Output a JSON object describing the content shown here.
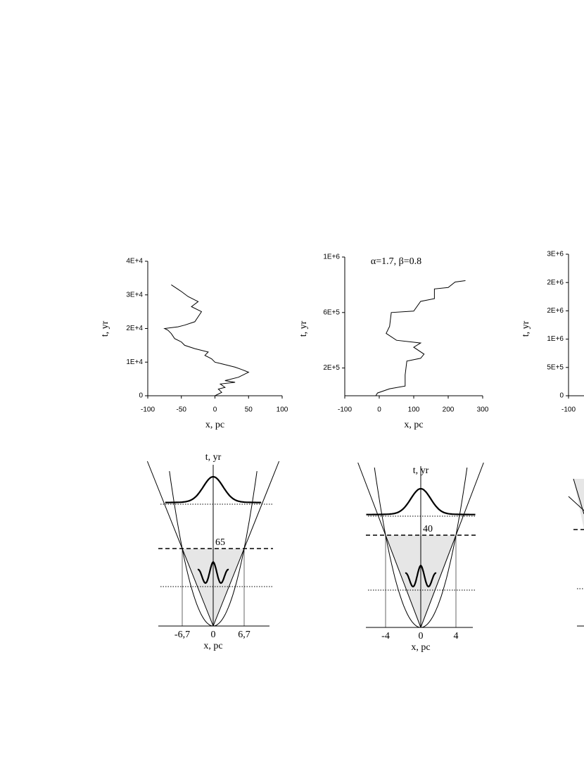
{
  "chart_data": [
    {
      "type": "line",
      "ylabel": "t, yr",
      "xlabel": "x, pc",
      "xlim": [
        -100,
        100
      ],
      "xticks": [
        -100,
        -50,
        0,
        50,
        100
      ],
      "ylim": [
        0,
        40000
      ],
      "yticks": [
        0,
        {
          "value": 10000,
          "label": "1E+4"
        },
        {
          "value": 20000,
          "label": "2E+4"
        },
        {
          "value": 30000,
          "label": "3E+4"
        },
        {
          "value": 40000,
          "label": "4E+4"
        }
      ],
      "color": "#000000",
      "x": [
        0,
        10,
        5,
        15,
        8,
        30,
        15,
        35,
        50,
        40,
        30,
        10,
        0,
        -5,
        -15,
        -10,
        -30,
        -45,
        -50,
        -60,
        -65,
        -70,
        -75,
        -55,
        -45,
        -30,
        -20,
        -35,
        -25,
        -40,
        -50,
        -65
      ],
      "values": [
        0,
        1000,
        2000,
        2500,
        3500,
        4000,
        4500,
        5500,
        7000,
        7800,
        8500,
        9500,
        10000,
        11000,
        12000,
        13000,
        14000,
        15000,
        16000,
        17000,
        18500,
        19500,
        20000,
        20500,
        21000,
        22000,
        25000,
        26500,
        28000,
        29500,
        31000,
        33000
      ]
    },
    {
      "type": "line",
      "title": "α=1.7, β=0.8",
      "ylabel": "t, yr",
      "xlabel": "x, pc",
      "xlim": [
        -100,
        300
      ],
      "xticks": [
        -100,
        0,
        100,
        200,
        300
      ],
      "ylim": [
        0,
        1000000
      ],
      "yticks": [
        {
          "value": 200000,
          "label": "2E+5"
        },
        {
          "value": 600000,
          "label": "6E+5"
        },
        {
          "value": 1000000,
          "label": "1E+6"
        }
      ],
      "color": "#000000",
      "x": [
        -10,
        -5,
        30,
        75,
        75,
        80,
        120,
        130,
        100,
        120,
        50,
        20,
        30,
        35,
        100,
        120,
        160,
        160,
        200,
        220,
        250
      ],
      "values": [
        0,
        20000,
        50000,
        70000,
        150000,
        250000,
        270000,
        300000,
        350000,
        380000,
        400000,
        450000,
        500000,
        600000,
        610000,
        680000,
        700000,
        770000,
        780000,
        820000,
        830000
      ]
    },
    {
      "type": "line",
      "ylabel": "t, yr",
      "xlim": [
        -100,
        100
      ],
      "xticks": [
        -100
      ],
      "ylim": [
        0,
        2500000
      ],
      "yticks": [
        0,
        {
          "value": 500000,
          "label": "5E+5"
        },
        {
          "value": 1000000,
          "label": "1E+6"
        },
        {
          "value": 1500000,
          "label": "2E+6"
        },
        {
          "value": 2000000,
          "label": "2E+6"
        },
        {
          "value": 2500000,
          "label": "3E+6"
        }
      ],
      "color": "#000000",
      "x": [],
      "values": []
    }
  ],
  "diagrams": [
    {
      "t_label": "t, yr",
      "x_label": "x, pc",
      "level_label": "65",
      "x_ticks": [
        "-6,7",
        "0",
        "6,7"
      ]
    },
    {
      "t_label": "t, yr",
      "x_label": "x, pc",
      "level_label": "40",
      "x_ticks": [
        "-4",
        "0",
        "4"
      ]
    }
  ]
}
